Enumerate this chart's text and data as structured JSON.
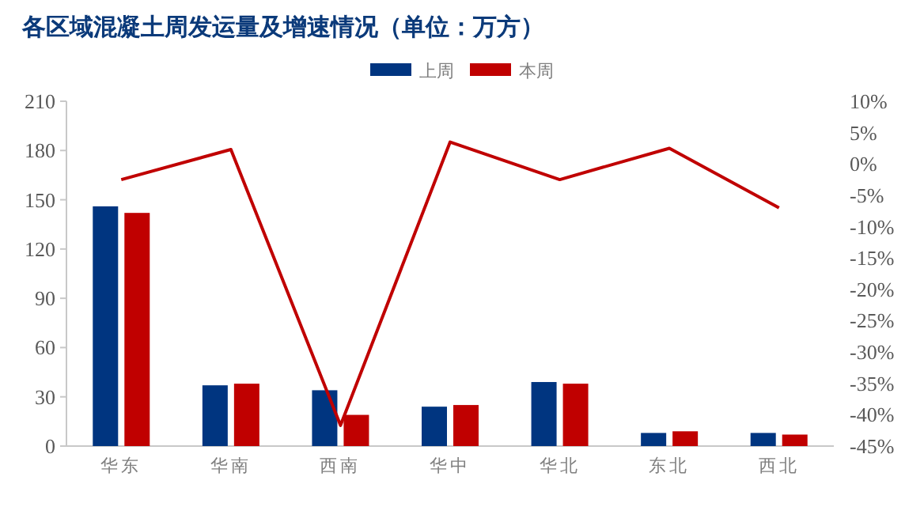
{
  "chart_data": {
    "type": "bar",
    "title": "各区域混凝土周发运量及增速情况（单位：万方）",
    "categories": [
      "华东",
      "华南",
      "西南",
      "华中",
      "华北",
      "东北",
      "西北"
    ],
    "series": [
      {
        "name": "上周",
        "color": "#003580",
        "values": [
          146,
          37,
          34,
          24,
          39,
          8,
          8
        ]
      },
      {
        "name": "本周",
        "color": "#c00000",
        "values": [
          142,
          38,
          19,
          25,
          38,
          9,
          7
        ]
      },
      {
        "type": "line",
        "axis": "y2",
        "color": "#c00000",
        "marker": "none",
        "line_style": "solid",
        "values": [
          -2.5,
          2.3,
          -41.7,
          3.5,
          -2.5,
          2.5,
          -7.0
        ]
      }
    ],
    "ylim": [
      0,
      210
    ],
    "yticks": [
      0,
      30,
      60,
      90,
      120,
      150,
      180,
      210
    ],
    "y2lim": [
      -45,
      10
    ],
    "y2ticks": [
      {
        "value": 10,
        "label": "10%"
      },
      {
        "value": 5,
        "label": "5%"
      },
      {
        "value": 0,
        "label": "0%"
      },
      {
        "value": -5,
        "label": "-5%"
      },
      {
        "value": -10,
        "label": "-10%"
      },
      {
        "value": -15,
        "label": "-15%"
      },
      {
        "value": -20,
        "label": "-20%"
      },
      {
        "value": -25,
        "label": "-25%"
      },
      {
        "value": -30,
        "label": "-30%"
      },
      {
        "value": -35,
        "label": "-35%"
      },
      {
        "value": -40,
        "label": "-40%"
      },
      {
        "value": -45,
        "label": "-45%"
      }
    ],
    "grid": false,
    "legend": "top"
  }
}
